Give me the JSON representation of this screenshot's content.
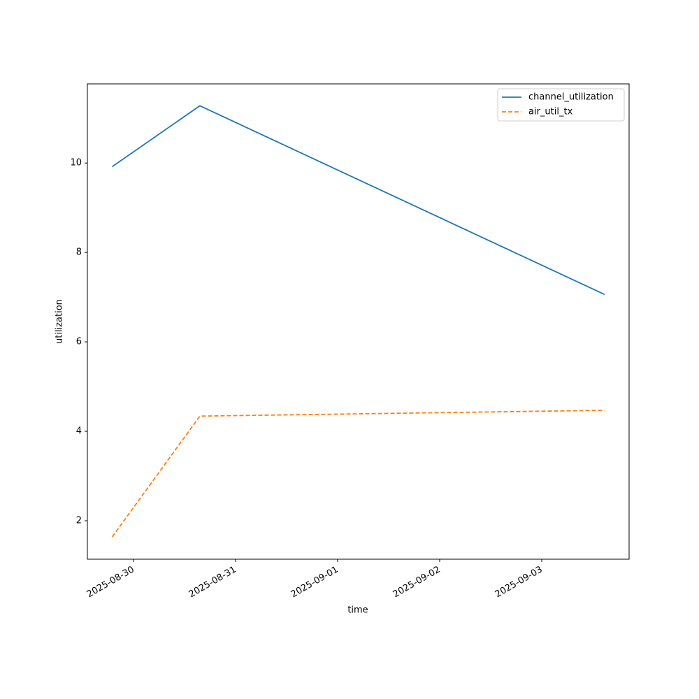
{
  "chart_data": {
    "type": "line",
    "xlabel": "time",
    "ylabel": "utilization",
    "x": [
      "2025-08-29T19:00",
      "2025-08-30T15:36",
      "2025-09-03T14:48"
    ],
    "series": [
      {
        "name": "channel_utilization",
        "color": "#1f77b4",
        "linestyle": "solid",
        "values": [
          9.92,
          11.28,
          7.06
        ]
      },
      {
        "name": "air_util_tx",
        "color": "#ff7f0e",
        "linestyle": "dashed",
        "values": [
          1.64,
          4.34,
          4.47
        ]
      }
    ],
    "xlim": [
      "2025-08-29T13:09",
      "2025-09-03T20:33"
    ],
    "xticks": [
      "2025-08-30",
      "2025-08-31",
      "2025-09-01",
      "2025-09-02",
      "2025-09-03"
    ],
    "ylim": [
      1.14,
      11.77
    ],
    "yticks": [
      2,
      4,
      6,
      8,
      10
    ],
    "grid": false,
    "legend": "upper right"
  }
}
